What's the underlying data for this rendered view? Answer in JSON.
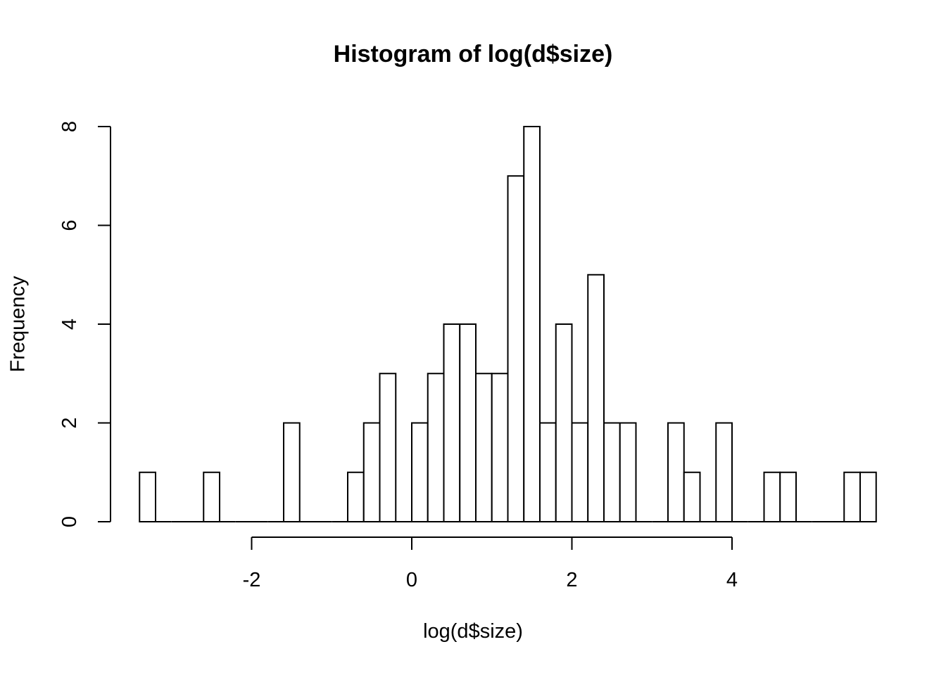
{
  "chart_data": {
    "type": "bar",
    "title": "Histogram of log(d$size)",
    "xlabel": "log(d$size)",
    "ylabel": "Frequency",
    "bin_width": 0.2,
    "bin_start": -3.4,
    "values": [
      1,
      0,
      0,
      0,
      1,
      0,
      0,
      0,
      0,
      2,
      0,
      0,
      0,
      1,
      2,
      3,
      0,
      2,
      3,
      4,
      4,
      3,
      3,
      7,
      8,
      2,
      4,
      2,
      5,
      2,
      2,
      0,
      0,
      2,
      1,
      0,
      2,
      0,
      0,
      1,
      1,
      0,
      0,
      0,
      1,
      1
    ],
    "x_ticks": [
      "-2",
      "0",
      "2",
      "4"
    ],
    "x_tick_values": [
      -2,
      0,
      2,
      4
    ],
    "y_ticks": [
      "0",
      "2",
      "4",
      "6",
      "8"
    ],
    "y_tick_values": [
      0,
      2,
      4,
      6,
      8
    ],
    "xlim": [
      -3.4,
      5.6
    ],
    "ylim": [
      0,
      8
    ],
    "grid": false,
    "colors": {
      "bar_fill": "#ffffff",
      "bar_stroke": "#000000",
      "axis": "#000000"
    }
  }
}
